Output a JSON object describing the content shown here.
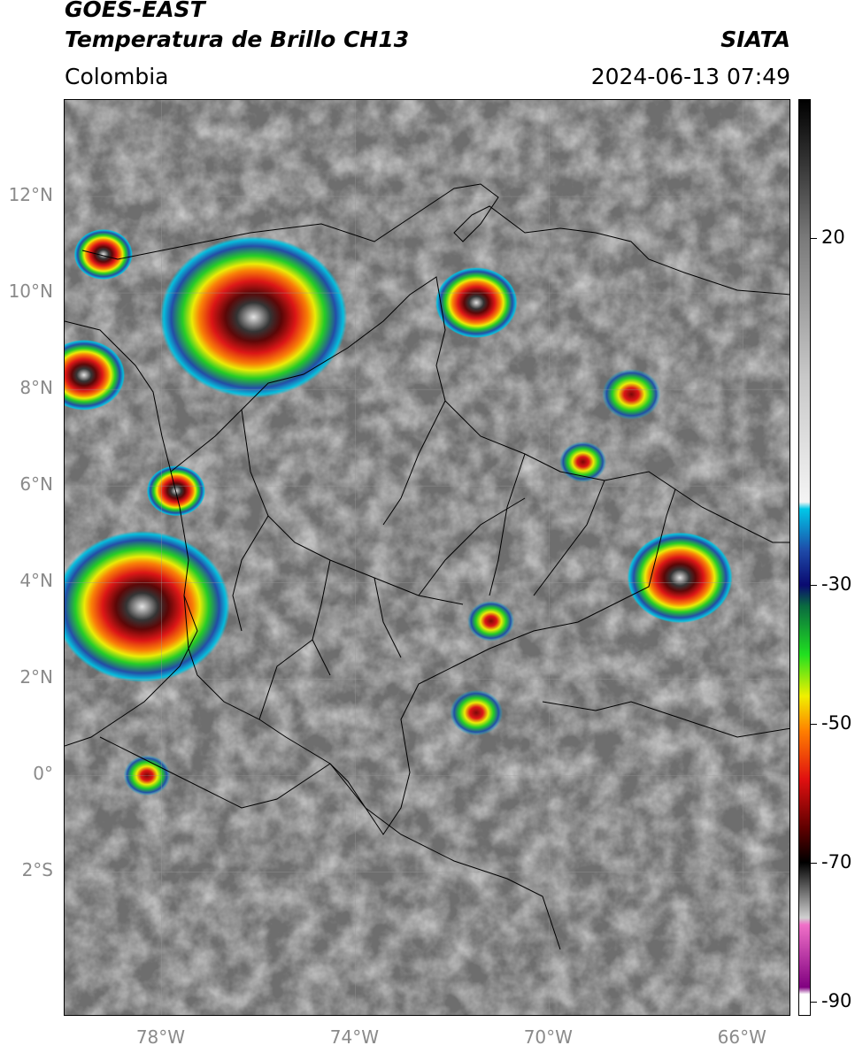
{
  "header": {
    "satellite": "GOES-EAST",
    "product": "Temperatura de Brillo CH13",
    "region": "Colombia",
    "organization": "SIATA",
    "datetime": "2024-06-13 07:49"
  },
  "map": {
    "lat_labels": [
      "12°N",
      "10°N",
      "8°N",
      "6°N",
      "4°N",
      "2°N",
      "0°",
      "2°S"
    ],
    "lon_labels": [
      "78°W",
      "74°W",
      "70°W",
      "66°W"
    ],
    "extent": {
      "lon_min": -80.0,
      "lon_max": -65.0,
      "lat_min": -5.0,
      "lat_max": 14.0
    },
    "convective_cells": [
      {
        "lon": -76.1,
        "lat": 9.5,
        "intensity": 1.0,
        "size": 1.6
      },
      {
        "lon": -79.2,
        "lat": 10.8,
        "intensity": 0.7,
        "size": 0.5
      },
      {
        "lon": -79.6,
        "lat": 8.3,
        "intensity": 0.9,
        "size": 0.7
      },
      {
        "lon": -71.5,
        "lat": 9.8,
        "intensity": 0.75,
        "size": 0.7
      },
      {
        "lon": -68.3,
        "lat": 7.9,
        "intensity": 0.55,
        "size": 0.5
      },
      {
        "lon": -77.7,
        "lat": 5.9,
        "intensity": 0.8,
        "size": 0.5
      },
      {
        "lon": -78.4,
        "lat": 3.5,
        "intensity": 0.95,
        "size": 1.5
      },
      {
        "lon": -67.3,
        "lat": 4.1,
        "intensity": 0.7,
        "size": 0.9
      },
      {
        "lon": -71.2,
        "lat": 3.2,
        "intensity": 0.4,
        "size": 0.4
      },
      {
        "lon": -71.5,
        "lat": 1.3,
        "intensity": 0.45,
        "size": 0.45
      },
      {
        "lon": -78.3,
        "lat": 0.0,
        "intensity": 0.3,
        "size": 0.4
      },
      {
        "lon": -69.3,
        "lat": 6.5,
        "intensity": 0.35,
        "size": 0.4
      }
    ]
  },
  "colorbar": {
    "ticks": [
      20,
      -30,
      -50,
      -70,
      -90
    ],
    "vmin": -92,
    "vmax": 40,
    "stops": [
      {
        "v": 40,
        "color": "#000000"
      },
      {
        "v": 30,
        "color": "#3a3a3a"
      },
      {
        "v": 20,
        "color": "#7a7a7a"
      },
      {
        "v": 0,
        "color": "#c8c8c8"
      },
      {
        "v": -18,
        "color": "#f4f4f4"
      },
      {
        "v": -19,
        "color": "#00c8e8"
      },
      {
        "v": -25,
        "color": "#1e4aa8"
      },
      {
        "v": -30,
        "color": "#0a0a70"
      },
      {
        "v": -33,
        "color": "#0a6a40"
      },
      {
        "v": -40,
        "color": "#20e020"
      },
      {
        "v": -46,
        "color": "#f0f000"
      },
      {
        "v": -51,
        "color": "#ff8000"
      },
      {
        "v": -58,
        "color": "#e01010"
      },
      {
        "v": -65,
        "color": "#600000"
      },
      {
        "v": -70,
        "color": "#000000"
      },
      {
        "v": -78,
        "color": "#d0d0d0"
      },
      {
        "v": -79,
        "color": "#f070c8"
      },
      {
        "v": -88,
        "color": "#800080"
      },
      {
        "v": -89,
        "color": "#ffffff"
      },
      {
        "v": -92,
        "color": "#ffffff"
      }
    ]
  }
}
